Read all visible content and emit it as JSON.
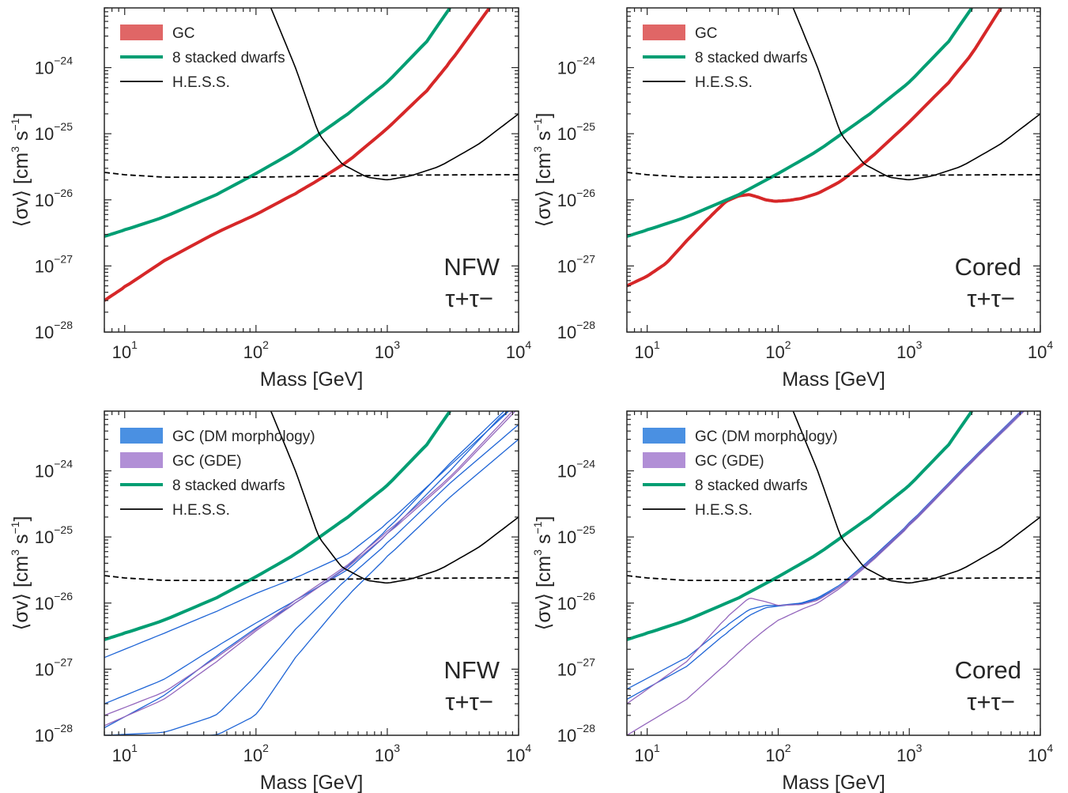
{
  "chart_data": [
    {
      "type": "line",
      "xlabel": "Mass [GeV]",
      "ylabel": "⟨σv⟩ [cm3 s−1]",
      "xscale": "log",
      "yscale": "log",
      "xlim": [
        7,
        10000
      ],
      "ylim": [
        1e-28,
        8e-24
      ],
      "xticks": [
        "10^1",
        "10^2",
        "10^3",
        "10^4"
      ],
      "yticks": [
        "10^−28",
        "10^−27",
        "10^−26",
        "10^−25",
        "10^−24"
      ],
      "grid": false,
      "legend_position": "top-left",
      "annotation": [
        "NFW",
        "τ+τ−"
      ],
      "series": [
        {
          "name": "GC",
          "color": "#d62728",
          "x": [
            7,
            10,
            20,
            50,
            100,
            200,
            300,
            500,
            1000,
            2000,
            3000,
            6000
          ],
          "y": [
            3e-28,
            4.8e-28,
            1.2e-27,
            3.2e-27,
            6e-27,
            1.25e-26,
            2e-26,
            3.8e-26,
            1.2e-25,
            4.5e-25,
            1.2e-24,
            8e-24
          ]
        },
        {
          "name": "8 stacked dwarfs",
          "color": "#009e73",
          "x": [
            7,
            10,
            20,
            50,
            100,
            200,
            500,
            1000,
            2000,
            3000
          ],
          "y": [
            2.8e-27,
            3.5e-27,
            5.5e-27,
            1.2e-26,
            2.5e-26,
            5.5e-26,
            2e-25,
            6e-25,
            2.5e-24,
            8e-24
          ]
        },
        {
          "name": "H.E.S.S.",
          "color": "#000000",
          "x": [
            130,
            200,
            300,
            450,
            700,
            1000,
            1500,
            2500,
            5000,
            10000
          ],
          "y": [
            8e-24,
            1e-24,
            1e-25,
            3.5e-26,
            2.2e-26,
            2e-26,
            2.3e-26,
            3.2e-26,
            7e-26,
            2e-25
          ]
        },
        {
          "name": "",
          "style": "dashed",
          "color": "#000000",
          "x": [
            7,
            10,
            20,
            50,
            100,
            200,
            500,
            1000,
            5000,
            10000
          ],
          "y": [
            2.6e-26,
            2.4e-26,
            2.2e-26,
            2.2e-26,
            2.2e-26,
            2.25e-26,
            2.3e-26,
            2.35e-26,
            2.4e-26,
            2.4e-26
          ]
        }
      ]
    },
    {
      "type": "line",
      "xlabel": "Mass [GeV]",
      "ylabel": "⟨σv⟩ [cm3 s−1]",
      "xscale": "log",
      "yscale": "log",
      "xlim": [
        7,
        10000
      ],
      "ylim": [
        1e-28,
        8e-24
      ],
      "xticks": [
        "10^1",
        "10^2",
        "10^3",
        "10^4"
      ],
      "yticks": [
        "10^−28",
        "10^−27",
        "10^−26",
        "10^−25",
        "10^−24"
      ],
      "grid": false,
      "legend_position": "top-left",
      "annotation": [
        "Cored",
        "τ+τ−"
      ],
      "series": [
        {
          "name": "GC",
          "color": "#d62728",
          "x": [
            7,
            10,
            14,
            20,
            30,
            40,
            50,
            60,
            70,
            80,
            95,
            120,
            150,
            200,
            300,
            500,
            1000,
            2000,
            3000,
            5000
          ],
          "y": [
            5e-28,
            7e-28,
            1.1e-27,
            2.4e-27,
            5.5e-27,
            9.5e-27,
            1.15e-26,
            1.2e-26,
            1.1e-26,
            1e-26,
            9.5e-27,
            9.8e-27,
            1.05e-26,
            1.25e-26,
            1.9e-26,
            4.2e-26,
            1.5e-25,
            6e-25,
            1.6e-24,
            8e-24
          ]
        },
        {
          "name": "8 stacked dwarfs",
          "color": "#009e73",
          "x": [
            7,
            10,
            20,
            50,
            100,
            200,
            500,
            1000,
            2000,
            3000
          ],
          "y": [
            2.8e-27,
            3.5e-27,
            5.5e-27,
            1.2e-26,
            2.5e-26,
            5.5e-26,
            2e-25,
            6e-25,
            2.5e-24,
            8e-24
          ]
        },
        {
          "name": "H.E.S.S.",
          "color": "#000000",
          "x": [
            130,
            200,
            300,
            450,
            700,
            1000,
            1500,
            2500,
            5000,
            10000
          ],
          "y": [
            8e-24,
            1e-24,
            1e-25,
            3.5e-26,
            2.2e-26,
            2e-26,
            2.3e-26,
            3.2e-26,
            7e-26,
            2e-25
          ]
        },
        {
          "name": "",
          "style": "dashed",
          "color": "#000000",
          "x": [
            7,
            10,
            20,
            50,
            100,
            200,
            500,
            1000,
            5000,
            10000
          ],
          "y": [
            2.6e-26,
            2.4e-26,
            2.2e-26,
            2.2e-26,
            2.2e-26,
            2.25e-26,
            2.3e-26,
            2.35e-26,
            2.4e-26,
            2.4e-26
          ]
        }
      ]
    },
    {
      "type": "line",
      "xlabel": "Mass [GeV]",
      "ylabel": "⟨σv⟩ [cm3 s−1]",
      "xscale": "log",
      "yscale": "log",
      "xlim": [
        7,
        10000
      ],
      "ylim": [
        1e-28,
        8e-24
      ],
      "xticks": [
        "10^1",
        "10^2",
        "10^3",
        "10^4"
      ],
      "yticks": [
        "10^−28",
        "10^−27",
        "10^−26",
        "10^−25",
        "10^−24"
      ],
      "grid": false,
      "legend_position": "top-left",
      "annotation": [
        "NFW",
        "τ+τ−"
      ],
      "series": [
        {
          "name": "GC (DM morphology)",
          "color": "#1f65d6",
          "x": [
            7,
            20,
            50,
            100,
            200,
            500,
            1000,
            3000,
            8000,
            10000
          ],
          "y": [
            3e-28,
            7e-28,
            2.2e-27,
            5e-27,
            1.1e-26,
            3.2e-26,
            1.1e-25,
            1e-24,
            8e-24,
            1e-23
          ]
        },
        {
          "name": "",
          "color": "#1f65d6",
          "x": [
            7,
            20,
            50,
            100,
            200,
            500,
            1000,
            3000,
            10000
          ],
          "y": [
            1.3e-28,
            4e-28,
            1.6e-27,
            4.2e-27,
            1e-26,
            3.6e-26,
            1.3e-25,
            1.3e-24,
            1.3e-23
          ]
        },
        {
          "name": "",
          "color": "#1f65d6",
          "x": [
            7,
            20,
            50,
            100,
            200,
            500,
            1000,
            3000,
            10000
          ],
          "y": [
            1.5e-27,
            3.5e-27,
            7.5e-27,
            1.4e-26,
            2.4e-26,
            5.5e-26,
            1.6e-25,
            1.2e-24,
            1.1e-23
          ]
        },
        {
          "name": "",
          "color": "#1f65d6",
          "x": [
            7,
            20,
            50,
            100,
            200,
            500,
            1000,
            3000,
            10000
          ],
          "y": [
            1e-28,
            1.1e-28,
            2e-28,
            8e-28,
            4e-27,
            2.4e-26,
            8e-26,
            6.5e-25,
            5e-24
          ]
        },
        {
          "name": "",
          "color": "#1f65d6",
          "x": [
            7,
            20,
            50,
            100,
            200,
            500,
            1000,
            3000,
            10000
          ],
          "y": [
            1e-28,
            1e-28,
            1e-28,
            2e-28,
            1.5e-27,
            1.3e-26,
            5e-26,
            4e-25,
            3e-24
          ]
        },
        {
          "name": "GC (GDE)",
          "color": "#9467bd",
          "x": [
            7,
            20,
            50,
            100,
            200,
            500,
            1000,
            3000,
            10000
          ],
          "y": [
            2e-28,
            4.5e-28,
            1.5e-27,
            4e-27,
            1.1e-26,
            3.8e-26,
            1.2e-25,
            8e-25,
            1e-23
          ]
        },
        {
          "name": "",
          "color": "#9467bd",
          "x": [
            7,
            20,
            50,
            100,
            200,
            500,
            1000,
            3000,
            10000
          ],
          "y": [
            1.4e-28,
            3.5e-28,
            1.3e-27,
            3.8e-27,
            1e-26,
            3.5e-26,
            1.1e-25,
            7.5e-25,
            9e-24
          ]
        },
        {
          "name": "8 stacked dwarfs",
          "color": "#009e73",
          "x": [
            7,
            10,
            20,
            50,
            100,
            200,
            500,
            1000,
            2000,
            3000
          ],
          "y": [
            2.8e-27,
            3.5e-27,
            5.5e-27,
            1.2e-26,
            2.5e-26,
            5.5e-26,
            2e-25,
            6e-25,
            2.5e-24,
            8e-24
          ]
        },
        {
          "name": "H.E.S.S.",
          "color": "#000000",
          "x": [
            130,
            200,
            300,
            450,
            700,
            1000,
            1500,
            2500,
            5000,
            10000
          ],
          "y": [
            8e-24,
            1e-24,
            1e-25,
            3.5e-26,
            2.2e-26,
            2e-26,
            2.3e-26,
            3.2e-26,
            7e-26,
            2e-25
          ]
        },
        {
          "name": "",
          "style": "dashed",
          "color": "#000000",
          "x": [
            7,
            10,
            20,
            50,
            100,
            200,
            500,
            1000,
            5000,
            10000
          ],
          "y": [
            2.6e-26,
            2.4e-26,
            2.2e-26,
            2.2e-26,
            2.2e-26,
            2.25e-26,
            2.3e-26,
            2.35e-26,
            2.4e-26,
            2.4e-26
          ]
        }
      ]
    },
    {
      "type": "line",
      "xlabel": "Mass [GeV]",
      "ylabel": "⟨σv⟩ [cm3 s−1]",
      "xscale": "log",
      "yscale": "log",
      "xlim": [
        7,
        10000
      ],
      "ylim": [
        1e-28,
        8e-24
      ],
      "xticks": [
        "10^1",
        "10^2",
        "10^3",
        "10^4"
      ],
      "yticks": [
        "10^−28",
        "10^−27",
        "10^−26",
        "10^−25",
        "10^−24"
      ],
      "grid": false,
      "legend_position": "top-left",
      "annotation": [
        "Cored",
        "τ+τ−"
      ],
      "series": [
        {
          "name": "GC (DM morphology)",
          "color": "#1f65d6",
          "x": [
            7,
            20,
            40,
            60,
            80,
            100,
            150,
            200,
            300,
            500,
            1000,
            3000,
            8000
          ],
          "y": [
            5e-28,
            1.5e-27,
            4.5e-27,
            8e-27,
            9.2e-27,
            9.2e-27,
            1e-26,
            1.2e-26,
            1.9e-26,
            4.5e-26,
            1.6e-25,
            1.5e-24,
            1e-23
          ]
        },
        {
          "name": "",
          "color": "#1f65d6",
          "x": [
            7,
            20,
            40,
            60,
            80,
            100,
            150,
            200,
            300,
            500,
            1000,
            3000,
            8000
          ],
          "y": [
            3.5e-28,
            1.1e-27,
            3.5e-27,
            6.5e-27,
            8.5e-27,
            9e-27,
            9.8e-27,
            1.15e-26,
            1.8e-26,
            4.2e-26,
            1.5e-25,
            1.4e-24,
            9.5e-24
          ]
        },
        {
          "name": "GC (GDE)",
          "color": "#9467bd",
          "x": [
            7,
            20,
            40,
            60,
            80,
            100,
            150,
            200,
            300,
            500,
            1000,
            3000,
            8000
          ],
          "y": [
            3e-28,
            1.3e-27,
            6e-27,
            1.2e-26,
            1.05e-26,
            9.2e-27,
            9.5e-27,
            1.1e-26,
            1.8e-26,
            4.3e-26,
            1.55e-25,
            1.45e-24,
            9.8e-24
          ]
        },
        {
          "name": "",
          "color": "#9467bd",
          "x": [
            7,
            20,
            40,
            60,
            80,
            100,
            150,
            200,
            300,
            500,
            1000,
            3000,
            8000
          ],
          "y": [
            1e-28,
            3.5e-28,
            1.2e-27,
            2.5e-27,
            4e-27,
            5.5e-27,
            8e-27,
            1e-26,
            1.7e-26,
            4e-26,
            1.45e-25,
            1.35e-24,
            9e-24
          ]
        },
        {
          "name": "8 stacked dwarfs",
          "color": "#009e73",
          "x": [
            7,
            10,
            20,
            50,
            100,
            200,
            500,
            1000,
            2000,
            3000
          ],
          "y": [
            2.8e-27,
            3.5e-27,
            5.5e-27,
            1.2e-26,
            2.5e-26,
            5.5e-26,
            2e-25,
            6e-25,
            2.5e-24,
            8e-24
          ]
        },
        {
          "name": "H.E.S.S.",
          "color": "#000000",
          "x": [
            130,
            200,
            300,
            450,
            700,
            1000,
            1500,
            2500,
            5000,
            10000
          ],
          "y": [
            8e-24,
            1e-24,
            1e-25,
            3.5e-26,
            2.2e-26,
            2e-26,
            2.3e-26,
            3.2e-26,
            7e-26,
            2e-25
          ]
        },
        {
          "name": "",
          "style": "dashed",
          "color": "#000000",
          "x": [
            7,
            10,
            20,
            50,
            100,
            200,
            500,
            1000,
            5000,
            10000
          ],
          "y": [
            2.6e-26,
            2.4e-26,
            2.2e-26,
            2.2e-26,
            2.2e-26,
            2.25e-26,
            2.3e-26,
            2.35e-26,
            2.4e-26,
            2.4e-26
          ]
        }
      ]
    }
  ]
}
